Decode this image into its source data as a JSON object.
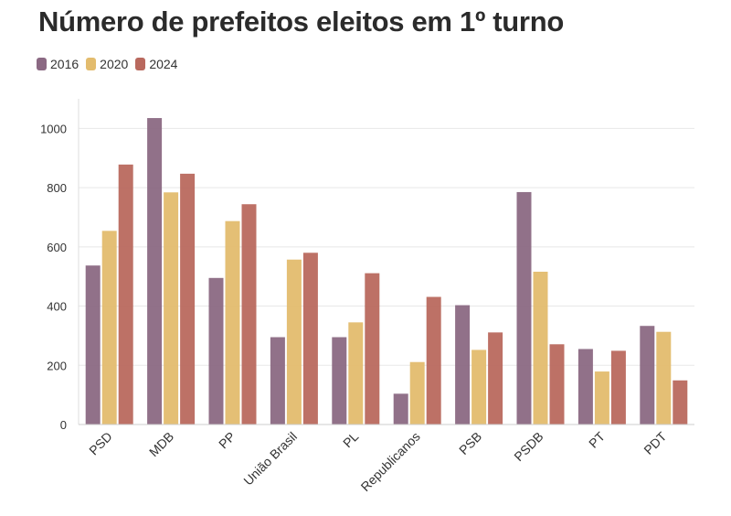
{
  "chart_data": {
    "type": "bar",
    "title": "Número de prefeitos eleitos em 1º turno",
    "categories": [
      "PSD",
      "MDB",
      "PP",
      "União Brasil",
      "PL",
      "Republicanos",
      "PSB",
      "PSDB",
      "PT",
      "PDT"
    ],
    "series": [
      {
        "name": "2016",
        "color": "#8b6983",
        "values": [
          537,
          1035,
          495,
          295,
          295,
          104,
          403,
          785,
          255,
          333
        ]
      },
      {
        "name": "2020",
        "color": "#e3bc6e",
        "values": [
          654,
          784,
          687,
          557,
          345,
          211,
          252,
          516,
          179,
          313
        ]
      },
      {
        "name": "2024",
        "color": "#b9695e",
        "values": [
          878,
          847,
          744,
          580,
          511,
          431,
          311,
          271,
          249,
          149
        ]
      }
    ],
    "yticks": [
      0,
      200,
      400,
      600,
      800,
      1000
    ],
    "ylim": [
      0,
      1100
    ],
    "grid": true,
    "legend_position": "top-left"
  }
}
